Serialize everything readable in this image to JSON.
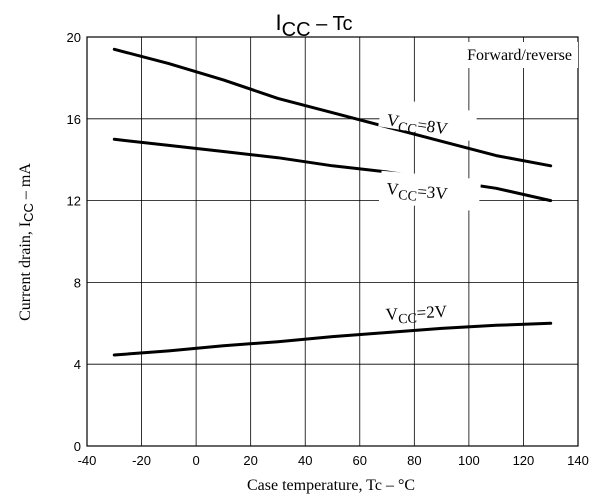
{
  "chart_data": {
    "type": "line",
    "title_main": "I",
    "title_sub": "CC",
    "title_rest": " – Tc",
    "xlabel": "Case temperature, Tc – °C",
    "ylabel_pre": "Current drain, I",
    "ylabel_sub": "CC",
    "ylabel_post": " – mA",
    "xlim": [
      -40,
      140
    ],
    "ylim": [
      0,
      20
    ],
    "xticks": [
      -40,
      -20,
      0,
      20,
      40,
      60,
      80,
      100,
      120,
      140
    ],
    "yticks": [
      0,
      4,
      8,
      12,
      16,
      20
    ],
    "grid": true,
    "annotation_box": "Forward/reverse",
    "series": [
      {
        "name": "VCC=8V",
        "label_main": "V",
        "label_sub": "CC",
        "label_rest": "=8V",
        "x": [
          -30,
          -10,
          10,
          30,
          50,
          70,
          90,
          110,
          130
        ],
        "y": [
          19.4,
          18.7,
          17.9,
          17.0,
          16.3,
          15.6,
          14.9,
          14.2,
          13.7
        ]
      },
      {
        "name": "VCC=3V",
        "label_main": "V",
        "label_sub": "CC",
        "label_rest": "=3V",
        "x": [
          -30,
          -10,
          10,
          30,
          50,
          70,
          90,
          110,
          130
        ],
        "y": [
          15.0,
          14.7,
          14.4,
          14.1,
          13.7,
          13.4,
          13.0,
          12.6,
          12.0
        ]
      },
      {
        "name": "VCC=2V",
        "label_main": "V",
        "label_sub": "CC",
        "label_rest": "=2V",
        "x": [
          -30,
          -10,
          10,
          30,
          50,
          70,
          90,
          110,
          130
        ],
        "y": [
          4.45,
          4.65,
          4.9,
          5.1,
          5.35,
          5.55,
          5.75,
          5.9,
          6.0
        ]
      }
    ]
  }
}
